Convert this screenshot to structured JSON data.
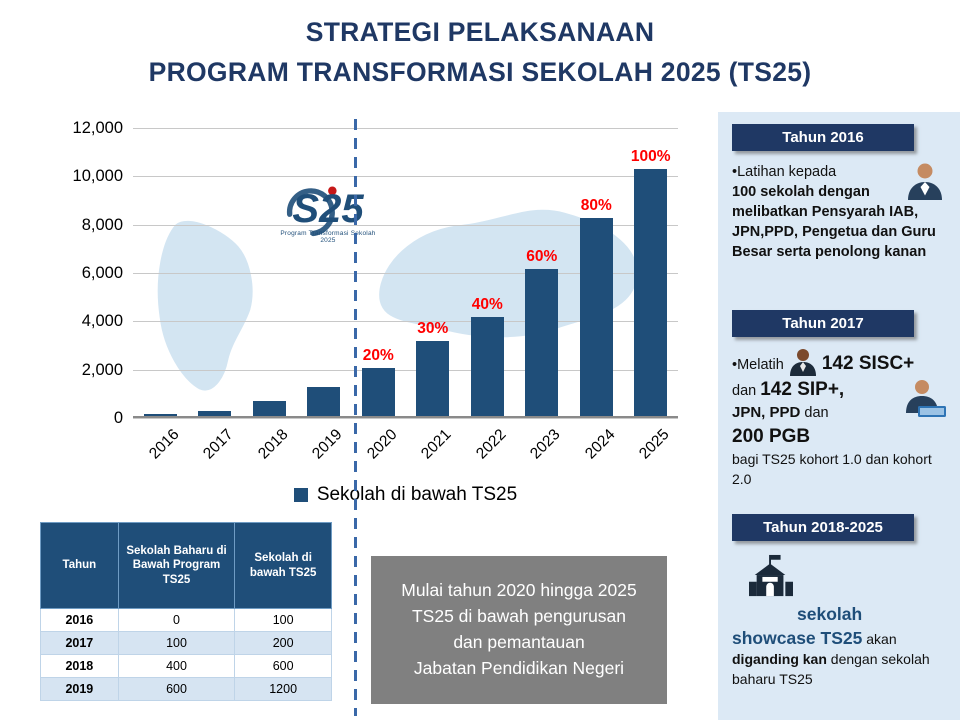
{
  "title": {
    "line1": "STRATEGI PELAKSANAAN",
    "line2": "PROGRAM TRANSFORMASI SEKOLAH 2025 (TS25)"
  },
  "chart_data": {
    "type": "bar",
    "title": "",
    "categories": [
      "2016",
      "2017",
      "2018",
      "2019",
      "2020",
      "2021",
      "2022",
      "2023",
      "2024",
      "2025"
    ],
    "values": [
      100,
      200,
      600,
      1200,
      2000,
      3100,
      4100,
      6100,
      8200,
      10200
    ],
    "bar_labels": [
      "",
      "",
      "",
      "",
      "20%",
      "30%",
      "40%",
      "60%",
      "80%",
      "100%"
    ],
    "ylim": [
      0,
      12000
    ],
    "yticks": [
      "12,000",
      "10,000",
      "8,000",
      "6,000",
      "4,000",
      "2,000",
      "0"
    ],
    "grid": true,
    "legend": "Sekolah di bawah TS25",
    "legend_position": "bottom",
    "bar_color": "#1F4E79",
    "percent_label_color": "#FF0000",
    "divider_between": [
      "2019",
      "2020"
    ]
  },
  "logo": {
    "text": "S25",
    "caption": "Program Transformasi Sekolah 2025"
  },
  "table": {
    "headers": [
      "Tahun",
      "Sekolah Baharu di Bawah Program TS25",
      "Sekolah di bawah  TS25"
    ],
    "rows": [
      [
        "2016",
        "0",
        "100"
      ],
      [
        "2017",
        "100",
        "200"
      ],
      [
        "2018",
        "400",
        "600"
      ],
      [
        "2019",
        "600",
        "1200"
      ]
    ]
  },
  "info_box": {
    "lines": [
      "Mulai tahun 2020 hingga 2025",
      "TS25 di bawah pengurusan dan pemantauan",
      "Jabatan Pendidikan Negeri"
    ]
  },
  "sidebar": {
    "s1": {
      "banner": "Tahun 2016",
      "t1": "•Latihan kepada",
      "t2": "100 sekolah  dengan melibatkan Pensyarah IAB, JPN,PPD, Pengetua dan Guru Besar serta penolong kanan"
    },
    "s2": {
      "banner": "Tahun 2017",
      "t1": "•Melatih ",
      "t2": "142 SISC+",
      "t3": "dan ",
      "t4": "142 SIP+,",
      "t5": "JPN, PPD",
      "t6": " dan",
      "t7": "200 PGB",
      "t8": "bagi TS25 kohort 1.0 dan kohort 2.0"
    },
    "s3": {
      "banner": "Tahun 2018-2025",
      "t1": "sekolah showcase TS25",
      "t2": " akan ",
      "t3": "diganding kan",
      "t4": " dengan sekolah baharu TS25"
    }
  }
}
